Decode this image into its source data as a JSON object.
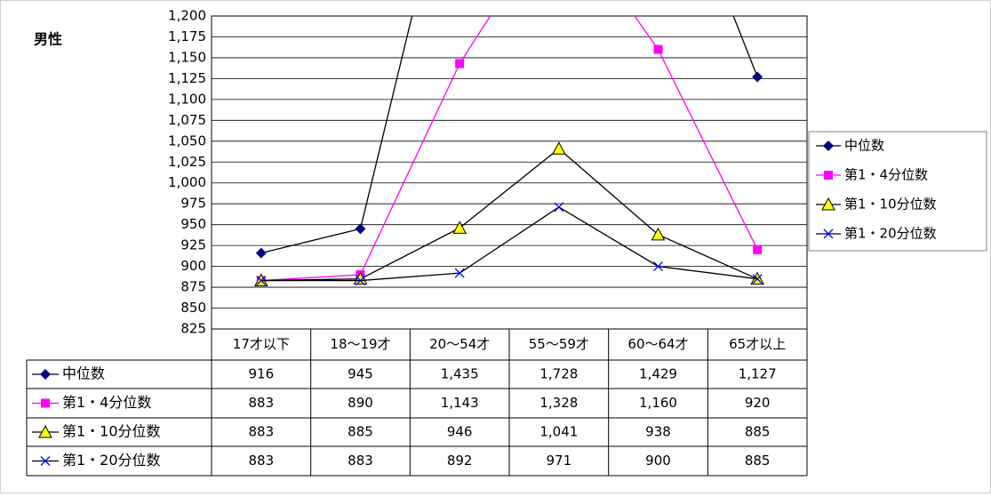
{
  "chart_data": {
    "type": "line",
    "title": "男性",
    "categories": [
      "17才以下",
      "18～19才",
      "20～54才",
      "55～59才",
      "60～64才",
      "65才以上"
    ],
    "series": [
      {
        "name": "中位数",
        "color": "#000080",
        "line_color": "#000000",
        "marker": "diamond",
        "values": [
          916,
          945,
          1435,
          1728,
          1429,
          1127
        ],
        "value_labels": [
          "916",
          "945",
          "1,435",
          "1,728",
          "1,429",
          "1,127"
        ]
      },
      {
        "name": "第1・4分位数",
        "color": "#ff00ff",
        "line_color": "#ff00ff",
        "marker": "square",
        "values": [
          883,
          890,
          1143,
          1328,
          1160,
          920
        ],
        "value_labels": [
          "883",
          "890",
          "1,143",
          "1,328",
          "1,160",
          "920"
        ]
      },
      {
        "name": "第1・10分位数",
        "color": "#ffff00",
        "line_color": "#000000",
        "marker": "triangle",
        "values": [
          883,
          885,
          946,
          1041,
          938,
          885
        ],
        "value_labels": [
          "883",
          "885",
          "946",
          "1,041",
          "938",
          "885"
        ]
      },
      {
        "name": "第1・20分位数",
        "color": "#0000ff",
        "line_color": "#000000",
        "marker": "x",
        "values": [
          883,
          883,
          892,
          971,
          900,
          885
        ],
        "value_labels": [
          "883",
          "883",
          "892",
          "971",
          "900",
          "885"
        ]
      }
    ],
    "ylim": [
      825,
      1200
    ],
    "yticks": [
      825,
      850,
      875,
      900,
      925,
      950,
      975,
      {
        "value": 1000,
        "label": "1,000"
      },
      {
        "value": 1025,
        "label": "1,025"
      },
      {
        "value": 1050,
        "label": "1,050"
      },
      {
        "value": 1075,
        "label": "1,075"
      },
      {
        "value": 1100,
        "label": "1,100"
      },
      {
        "value": 1125,
        "label": "1,125"
      },
      {
        "value": 1150,
        "label": "1,150"
      },
      {
        "value": 1175,
        "label": "1,175"
      },
      {
        "value": 1200,
        "label": "1,200"
      }
    ],
    "grid": true,
    "legend": "right"
  }
}
